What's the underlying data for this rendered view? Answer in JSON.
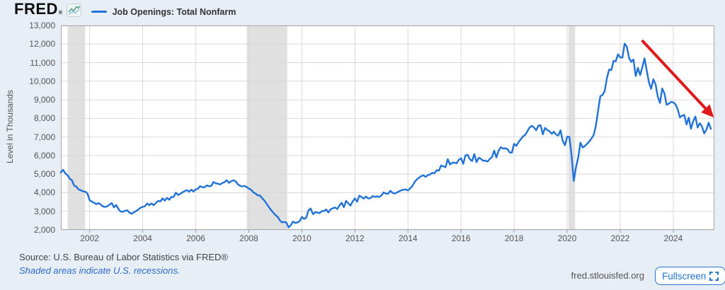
{
  "header": {
    "logo": "FRED",
    "logo_reg": "®",
    "legend_label": "Job Openings: Total Nonfarm"
  },
  "footer": {
    "source": "Source: U.S. Bureau of Labor Statistics via FRED®",
    "recession_note": "Shaded areas indicate U.S. recessions.",
    "site": "fred.stlouisfed.org",
    "fullscreen_label": "Fullscreen"
  },
  "colors": {
    "background": "#e7eef6",
    "plot_background": "#ffffff",
    "series_blue": "#2172d8",
    "arrow_red": "#e01a1a",
    "recession_band": "#e0e0e0",
    "gridline": "#d9d9d9",
    "plot_border": "#a8a8a8",
    "link_blue": "#2a6bc6",
    "button_blue": "#2673d2"
  },
  "icons": {
    "fred_graph_icon": "mini-line-chart",
    "fullscreen_icon": "expand-corners"
  },
  "chart_data": {
    "type": "line",
    "title": "Job Openings: Total Nonfarm",
    "xlabel": "",
    "ylabel": "Level in Thousands",
    "units": "Thousands",
    "frequency": "monthly",
    "grid": true,
    "legend_position": "top-left",
    "xlim": [
      2000.917,
      2025.55
    ],
    "ylim": [
      2000,
      13000
    ],
    "y_ticks": {
      "values": [
        2000,
        3000,
        4000,
        5000,
        6000,
        7000,
        8000,
        9000,
        10000,
        11000,
        12000,
        13000
      ],
      "labels": [
        "2,000",
        "3,000",
        "4,000",
        "5,000",
        "6,000",
        "7,000",
        "8,000",
        "9,000",
        "10,000",
        "11,000",
        "12,000",
        "13,000"
      ]
    },
    "x_ticks": {
      "values": [
        2002,
        2004,
        2006,
        2008,
        2010,
        2012,
        2014,
        2016,
        2018,
        2020,
        2022,
        2024
      ],
      "labels": [
        "2002",
        "2004",
        "2006",
        "2008",
        "2010",
        "2012",
        "2014",
        "2016",
        "2018",
        "2020",
        "2022",
        "2024"
      ]
    },
    "recessions": [
      {
        "start": 2001.17,
        "end": 2001.83
      },
      {
        "start": 2007.92,
        "end": 2009.45
      },
      {
        "start": 2020.05,
        "end": 2020.3
      }
    ],
    "annotation_arrow": {
      "from_year": 2022.82,
      "from_value": 12200,
      "to_year": 2025.4,
      "to_value": 8250,
      "color": "#e01a1a"
    },
    "series": [
      {
        "name": "Job Openings: Total Nonfarm",
        "color": "#2172d8",
        "start": "2000-12",
        "values": [
          5088,
          5234,
          5042,
          4939,
          4755,
          4669,
          4386,
          4327,
          4173,
          4135,
          4069,
          4060,
          3965,
          3593,
          3523,
          3467,
          3382,
          3448,
          3366,
          3263,
          3235,
          3270,
          3357,
          3442,
          3216,
          3336,
          3126,
          2989,
          2975,
          3024,
          3055,
          2925,
          2869,
          2949,
          3016,
          3089,
          3195,
          3238,
          3273,
          3419,
          3332,
          3422,
          3323,
          3454,
          3561,
          3531,
          3692,
          3572,
          3723,
          3626,
          3775,
          3775,
          4003,
          3881,
          3932,
          4022,
          4085,
          4136,
          4057,
          4162,
          4063,
          4179,
          4214,
          4352,
          4297,
          4295,
          4394,
          4347,
          4358,
          4572,
          4510,
          4486,
          4444,
          4516,
          4576,
          4673,
          4530,
          4617,
          4670,
          4619,
          4460,
          4375,
          4339,
          4362,
          4312,
          4224,
          4164,
          4026,
          3955,
          3857,
          3852,
          3716,
          3585,
          3415,
          3245,
          3079,
          2937,
          2803,
          2713,
          2519,
          2408,
          2425,
          2397,
          2132,
          2251,
          2444,
          2373,
          2397,
          2465,
          2702,
          2588,
          2666,
          3054,
          3151,
          2844,
          2953,
          2936,
          2899,
          3012,
          3014,
          3097,
          2935,
          3099,
          3161,
          3207,
          3121,
          3313,
          3457,
          3217,
          3562,
          3433,
          3305,
          3536,
          3693,
          3516,
          3844,
          3768,
          3681,
          3796,
          3691,
          3705,
          3820,
          3778,
          3802,
          3768,
          3852,
          4016,
          3950,
          3950,
          4100,
          3994,
          3958,
          4009,
          4070,
          4136,
          4165,
          4173,
          4120,
          4242,
          4364,
          4575,
          4709,
          4804,
          4897,
          4935,
          4853,
          4942,
          4987,
          5069,
          5047,
          5215,
          5187,
          5470,
          5416,
          5373,
          5807,
          5517,
          5614,
          5616,
          5580,
          5780,
          5855,
          5552,
          6013,
          6039,
          5800,
          5703,
          6082,
          5646,
          5877,
          5823,
          5718,
          5733,
          5672,
          5823,
          5914,
          6268,
          5897,
          6272,
          6446,
          6376,
          6392,
          6342,
          6168,
          6152,
          6633,
          6523,
          6722,
          6875,
          7024,
          7106,
          7303,
          7514,
          7597,
          7512,
          7361,
          7615,
          7625,
          7142,
          7493,
          7372,
          7310,
          7174,
          7284,
          7129,
          7076,
          7361,
          6787,
          6552,
          7012,
          7004,
          6011,
          4630,
          5361,
          5889,
          6697,
          6435,
          6506,
          6632,
          6756,
          6917,
          7099,
          7590,
          8423,
          9193,
          9260,
          9480,
          10180,
          10629,
          10602,
          11091,
          11074,
          11448,
          11283,
          11266,
          12027,
          11855,
          11254,
          11045,
          11170,
          10280,
          10717,
          10334,
          10746,
          11234,
          10563,
          9931,
          9590,
          10103,
          9824,
          9165,
          8827,
          9610,
          9350,
          8733,
          8790,
          8889,
          8863,
          8756,
          8488,
          8059,
          8140,
          8184,
          7673,
          8040,
          7443,
          7839,
          8098,
          7508,
          7740,
          7568,
          7192,
          7391,
          7769,
          7437
        ]
      }
    ]
  }
}
